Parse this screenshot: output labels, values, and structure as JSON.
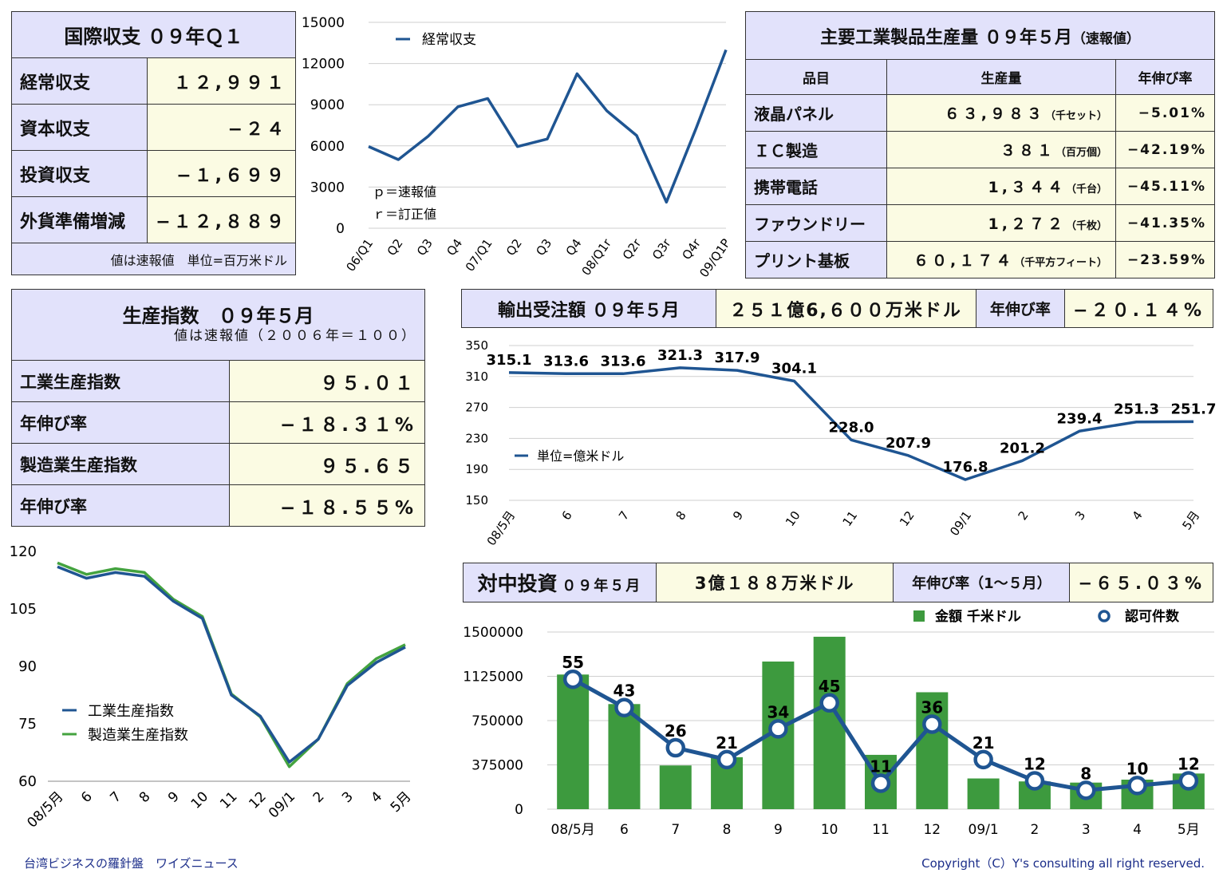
{
  "bop": {
    "title": "国際収支 ０９年Ｑ１",
    "rows": [
      {
        "label": "経常収支",
        "value": "１２,９９１"
      },
      {
        "label": "資本収支",
        "value": "−２４"
      },
      {
        "label": "投資収支",
        "value": "−１,６９９"
      },
      {
        "label": "外貨準備増減",
        "value": "−１２,８８９"
      }
    ],
    "note": "値は速報値　単位=百万米ドル"
  },
  "prod": {
    "title": "主要工業製品生産量 ０９年５月",
    "title_suffix": "（速報値）",
    "headers": [
      "品目",
      "生産量",
      "年伸び率"
    ],
    "rows": [
      {
        "item": "液晶パネル",
        "value": "６３,９８３",
        "unit": "（千セット）",
        "growth": "−5.01%"
      },
      {
        "item": "ＩＣ製造",
        "value": "３８１",
        "unit": "（百万個）",
        "growth": "−42.19%"
      },
      {
        "item": "携帯電話",
        "value": "1,３４４",
        "unit": "（千台）",
        "growth": "−45.11%"
      },
      {
        "item": "ファウンドリー",
        "value": "1,２７２",
        "unit": "（千枚）",
        "growth": "−41.35%"
      },
      {
        "item": "プリント基板",
        "value": "６０,１７４",
        "unit": "（千平方フィート）",
        "growth": "−23.59%"
      }
    ]
  },
  "index": {
    "title": "生産指数　０９年５月",
    "subtitle": "値は速報値（２００６年＝１００）",
    "rows": [
      {
        "label": "工業生産指数",
        "value": "９５.０１"
      },
      {
        "label": "年伸び率",
        "value": "−１８.３１%"
      },
      {
        "label": "製造業生産指数",
        "value": "９５.６５"
      },
      {
        "label": "年伸び率",
        "value": "−１８.５５%"
      }
    ]
  },
  "export": {
    "label": "輸出受注額 ０９年５月",
    "amount": "２５１億6,６００万米ドル",
    "growth_label": "年伸び率",
    "growth": "−２０.１４%"
  },
  "china": {
    "label": "対中投資",
    "label_suffix": "０９年５月",
    "amount": "3億１８８万米ドル",
    "growth_label": "年伸び率（1〜５月）",
    "growth": "−６５.０３%"
  },
  "footer": {
    "left": "台湾ビジネスの羅針盤　ワイズニュース",
    "right": "Copyright（C）Y's consulting all right reserved."
  },
  "colors": {
    "line_blue": "#1f5592",
    "line_green": "#44a33f",
    "bar_green": "#3d9a3e",
    "lavender": "#e2e2fb",
    "cream": "#fbfbe3"
  },
  "chart_data": [
    {
      "id": "current_account",
      "type": "line",
      "categories": [
        "06/Q1",
        "Q2",
        "Q3",
        "Q4",
        "07/Q1",
        "Q2",
        "Q3",
        "Q4",
        "08/Q1r",
        "Q2r",
        "Q3r",
        "Q4r",
        "09/Q1P"
      ],
      "series": [
        {
          "name": "経常収支",
          "values": [
            5950,
            5000,
            6700,
            8850,
            9450,
            5950,
            6500,
            11250,
            8550,
            6750,
            1900,
            7300,
            12991
          ]
        }
      ],
      "ylim": [
        0,
        15000
      ],
      "yticks": [
        0,
        3000,
        6000,
        9000,
        12000,
        15000
      ],
      "annotations": [
        "ｐ＝速報値",
        "ｒ＝訂正値"
      ],
      "grid": true,
      "legend": "top-left"
    },
    {
      "id": "production_index",
      "type": "line",
      "categories": [
        "08/5月",
        "6",
        "7",
        "8",
        "9",
        "10",
        "11",
        "12",
        "09/1",
        "2",
        "3",
        "4",
        "5月"
      ],
      "series": [
        {
          "name": "工業生産指数",
          "values": [
            116.0,
            113.0,
            114.5,
            113.5,
            107.0,
            102.5,
            82.5,
            77.0,
            65.0,
            71.0,
            85.0,
            91.0,
            95.01
          ]
        },
        {
          "name": "製造業生産指数",
          "values": [
            117.0,
            114.0,
            115.5,
            114.5,
            107.5,
            103.0,
            82.8,
            76.8,
            63.8,
            71.0,
            85.5,
            92.0,
            95.65
          ]
        }
      ],
      "ylim": [
        60,
        120
      ],
      "yticks": [
        60,
        75,
        90,
        105,
        120
      ],
      "grid": false,
      "legend": "bottom-left"
    },
    {
      "id": "export_orders",
      "type": "line",
      "categories": [
        "08/5月",
        "6",
        "7",
        "8",
        "9",
        "10",
        "11",
        "12",
        "09/1",
        "2",
        "3",
        "4",
        "5月"
      ],
      "series": [
        {
          "name": "単位=億米ドル",
          "values": [
            315.1,
            313.6,
            313.6,
            321.3,
            317.9,
            304.1,
            228.0,
            207.9,
            176.8,
            201.2,
            239.4,
            251.3,
            251.7
          ]
        }
      ],
      "data_labels": [
        "315.1",
        "313.6",
        "313.6",
        "321.3",
        "317.9",
        "304.1",
        "228.0",
        "207.9",
        "176.8",
        "201.2",
        "239.4",
        "251.3",
        "251.7"
      ],
      "ylim": [
        150,
        350
      ],
      "yticks": [
        150,
        190,
        230,
        270,
        310,
        350
      ],
      "grid": true,
      "legend": "left"
    },
    {
      "id": "china_investment",
      "type": "bar",
      "categories": [
        "08/5月",
        "6",
        "7",
        "8",
        "9",
        "10",
        "11",
        "12",
        "09/1",
        "2",
        "3",
        "4",
        "5月"
      ],
      "series": [
        {
          "name": "金額 千米ドル",
          "type": "bar",
          "values": [
            1140000,
            890000,
            370000,
            440000,
            1250000,
            1460000,
            460000,
            990000,
            260000,
            235000,
            225000,
            250000,
            301880
          ]
        },
        {
          "name": "認可件数",
          "type": "line",
          "values": [
            55,
            43,
            26,
            21,
            34,
            45,
            11,
            36,
            21,
            12,
            8,
            10,
            12
          ]
        }
      ],
      "data_labels": [
        "55",
        "43",
        "26",
        "21",
        "34",
        "45",
        "11",
        "36",
        "21",
        "12",
        "8",
        "10",
        "12"
      ],
      "ylim": [
        0,
        1500000
      ],
      "yticks": [
        0,
        375000,
        750000,
        1125000,
        1500000
      ],
      "yticks_labels": [
        "0",
        "375000",
        "750000",
        "1125000",
        "1500000"
      ],
      "grid": true,
      "legend": "top-right"
    }
  ]
}
